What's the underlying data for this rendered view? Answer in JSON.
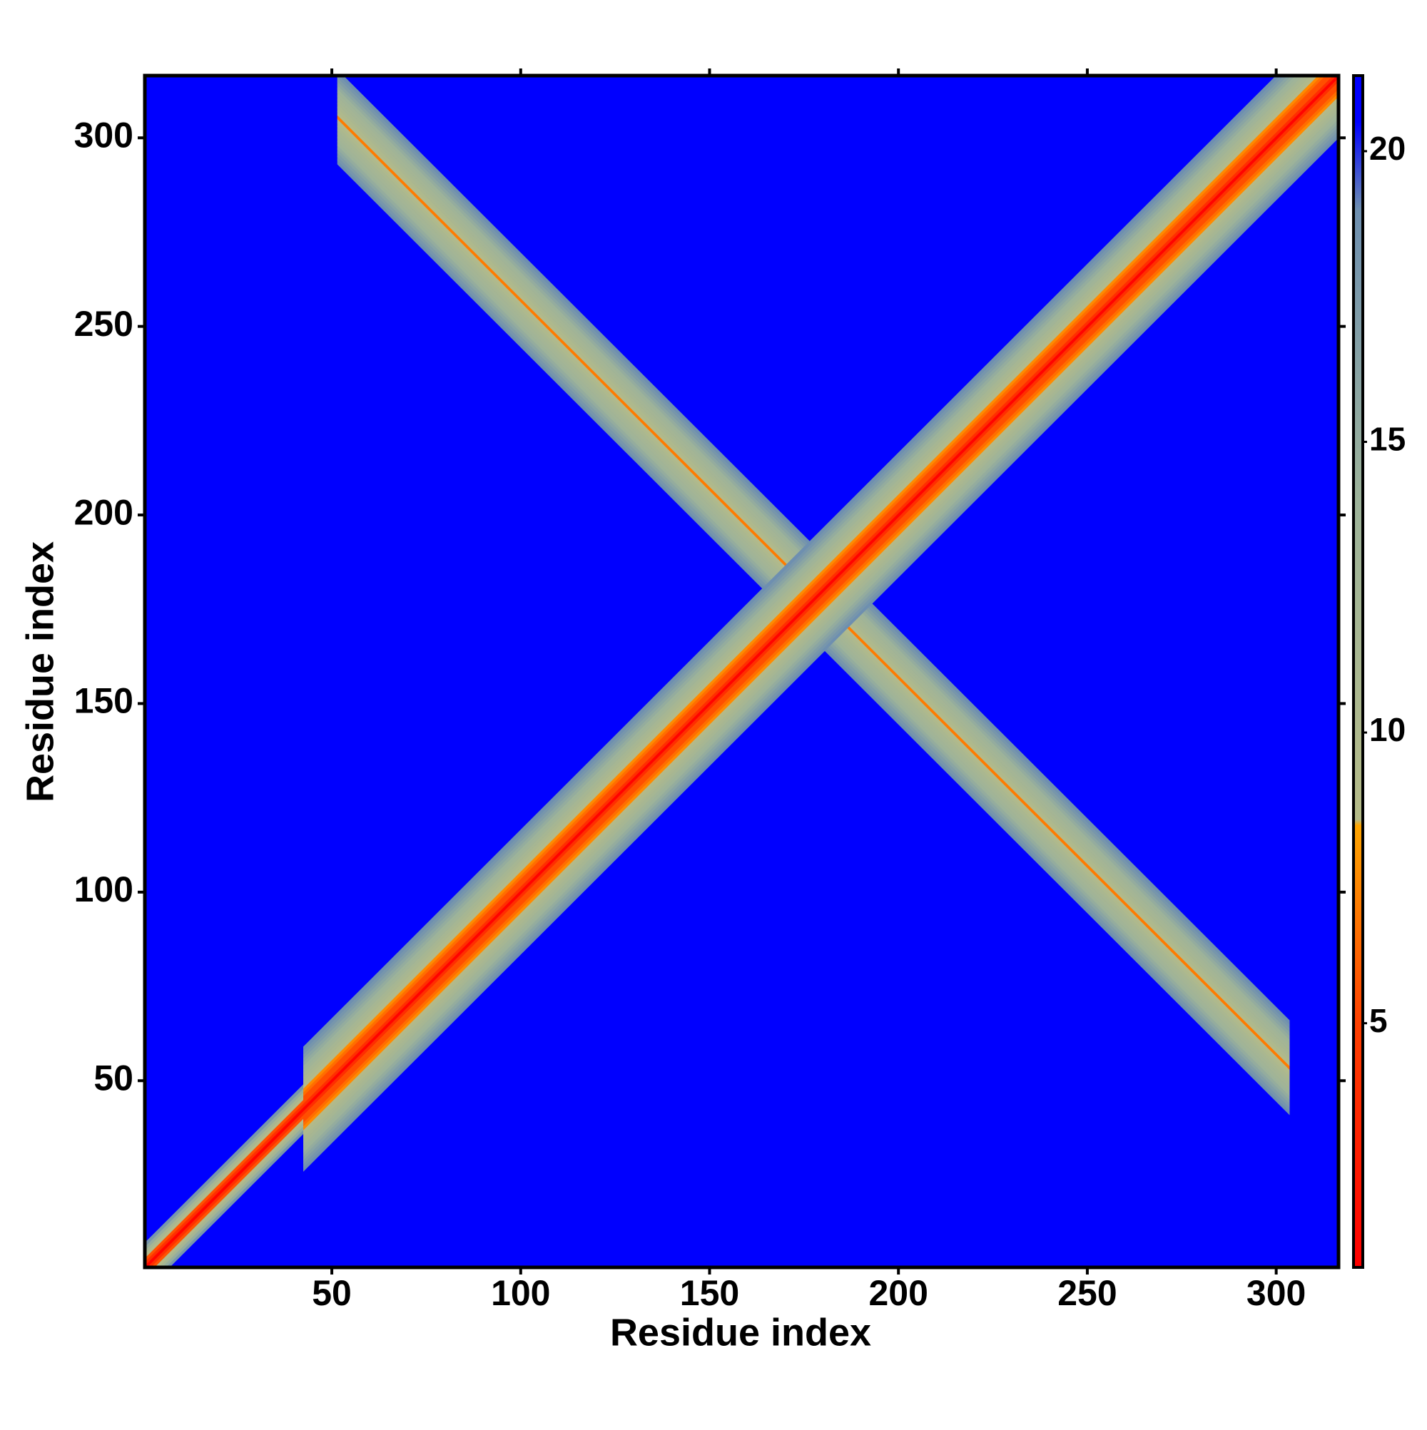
{
  "chart_data": {
    "type": "heatmap",
    "xlabel": "Residue index",
    "ylabel": "Residue index",
    "xlim": [
      0.5,
      316.5
    ],
    "ylim": [
      0.5,
      316.5
    ],
    "xticks": [
      50,
      100,
      150,
      200,
      250,
      300
    ],
    "yticks": [
      50,
      100,
      150,
      200,
      250,
      300
    ],
    "background_value": 21,
    "bands": [
      {
        "direction": "anti-diagonal",
        "center": 357,
        "range": [
          52,
          303
        ],
        "offset_values": [
          7,
          9,
          10,
          11,
          12,
          12.5,
          13,
          14,
          15,
          16,
          17,
          18,
          19
        ]
      },
      {
        "direction": "diagonal",
        "range": [
          1,
          42
        ],
        "offset_values": [
          1,
          3.8,
          5.6,
          9,
          12,
          15,
          18
        ]
      },
      {
        "direction": "diagonal",
        "range": [
          43,
          316
        ],
        "offset_values": [
          1,
          3.8,
          5.5,
          5.5,
          6.5,
          7.5,
          9,
          10,
          11,
          12,
          13,
          14,
          15,
          16,
          17,
          18,
          19
        ]
      }
    ],
    "colorbar": {
      "lim": [
        0.8,
        21.3
      ],
      "ticks": [
        5,
        10,
        15,
        20
      ],
      "colors": [
        {
          "value": 0.8,
          "color": "#ff0000"
        },
        {
          "value": 5,
          "color": "#ff4000"
        },
        {
          "value": 8.4,
          "color": "#ffa500"
        },
        {
          "value": 8.5,
          "color": "#b5bb88"
        },
        {
          "value": 14,
          "color": "#9db39a"
        },
        {
          "value": 19,
          "color": "#6e8fb0"
        },
        {
          "value": 20.5,
          "color": "#0000ff"
        },
        {
          "value": 21.3,
          "color": "#0000ff"
        }
      ]
    }
  }
}
